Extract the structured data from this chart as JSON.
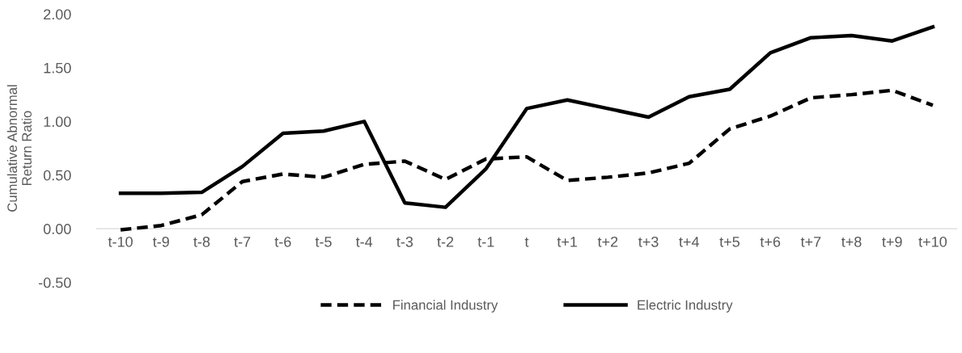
{
  "chart_data": {
    "type": "line",
    "ylabel": "Cumulative Abnormal\nReturn Ratio",
    "categories": [
      "t-10",
      "t-9",
      "t-8",
      "t-7",
      "t-6",
      "t-5",
      "t-4",
      "t-3",
      "t-2",
      "t-1",
      "t",
      "t+1",
      "t+2",
      "t+3",
      "t+4",
      "t+5",
      "t+6",
      "t+7",
      "t+8",
      "t+9",
      "t+10"
    ],
    "series": [
      {
        "name": "Financial Industry",
        "color": "#000000",
        "line_style": "dashed",
        "values": [
          -0.01,
          0.03,
          0.13,
          0.44,
          0.51,
          0.48,
          0.6,
          0.63,
          0.46,
          0.65,
          0.67,
          0.45,
          0.48,
          0.52,
          0.61,
          0.93,
          1.05,
          1.22,
          1.25,
          1.29,
          1.15
        ]
      },
      {
        "name": "Electric Industry",
        "color": "#000000",
        "line_style": "solid",
        "values": [
          0.33,
          0.33,
          0.34,
          0.58,
          0.89,
          0.91,
          1.0,
          0.24,
          0.2,
          0.56,
          1.12,
          1.2,
          1.12,
          1.04,
          1.23,
          1.3,
          1.64,
          1.78,
          1.8,
          1.75,
          1.88
        ]
      }
    ],
    "ylim": [
      -0.5,
      2.0
    ],
    "yticks": [
      {
        "value": -0.5,
        "label": "-0.50"
      },
      {
        "value": 0,
        "label": "0.00"
      },
      {
        "value": 0.5,
        "label": "0.50"
      },
      {
        "value": 1.0,
        "label": "1.00"
      },
      {
        "value": 1.5,
        "label": "1.50"
      },
      {
        "value": 2.0,
        "label": "2.00"
      }
    ],
    "grid": false,
    "legend": "bottom",
    "marker": "none"
  }
}
